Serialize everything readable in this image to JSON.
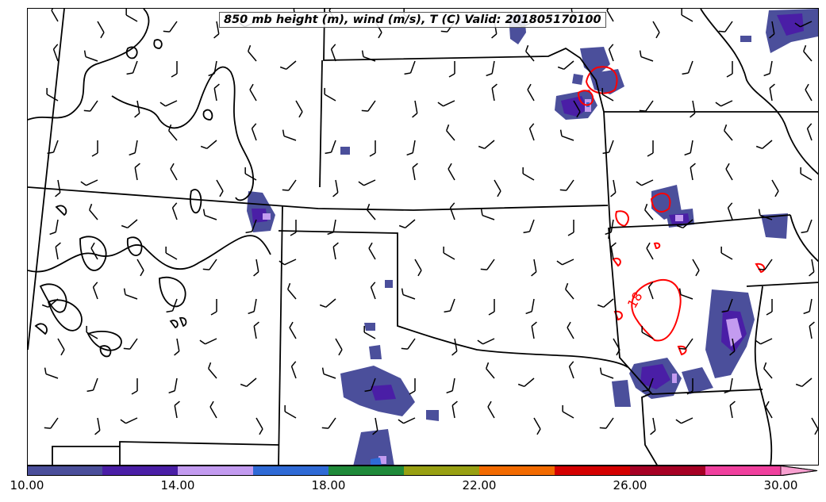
{
  "title": "850 mb height (m), wind (m/s), T (C) Valid: 201805170100",
  "contour_label": "18",
  "colorbar": {
    "labels": [
      "10.00",
      "14.00",
      "18.00",
      "22.00",
      "26.00",
      "30.00"
    ],
    "colors": [
      "#4b4f9b",
      "#4a1ea6",
      "#c39bf0",
      "#2f6ad6",
      "#1f8a3a",
      "#98a012",
      "#f26a00",
      "#d40000",
      "#a60024",
      "#f0409e",
      "#f8a0d0"
    ]
  },
  "colors": {
    "background": "#ffffff",
    "state_lines": "#000000",
    "height_contours": "#000000",
    "temperature_contours": "#ff0000"
  }
}
